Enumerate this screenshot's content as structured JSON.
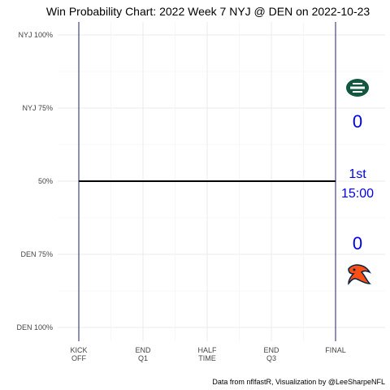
{
  "chart_data": {
    "type": "line",
    "title": "Win Probability Chart: 2022 Week 7 NYJ @ DEN on 2022-10-23",
    "caption": "Data from nflfastR, Visualization by @LeeSharpeNFL",
    "y_ticks": [
      {
        "value": 100,
        "label": "NYJ 100%"
      },
      {
        "value": 75,
        "label": "NYJ 75%"
      },
      {
        "value": 50,
        "label": "50%"
      },
      {
        "value": 25,
        "label": "DEN 75%"
      },
      {
        "value": 0,
        "label": "DEN 100%"
      }
    ],
    "ylim": [
      0,
      100
    ],
    "x_ticks": [
      {
        "value": 0,
        "line1": "KICK",
        "line2": "OFF"
      },
      {
        "value": 900,
        "line1": "END",
        "line2": "Q1"
      },
      {
        "value": 1800,
        "line1": "HALF",
        "line2": "TIME"
      },
      {
        "value": 2700,
        "line1": "END",
        "line2": "Q3"
      },
      {
        "value": 3600,
        "line1": "FINAL",
        "line2": ""
      }
    ],
    "xlim": [
      0,
      3600
    ],
    "series": [
      {
        "values": [
          {
            "x": 0,
            "y": 50
          },
          {
            "x": 3600,
            "y": 50
          }
        ]
      }
    ],
    "grid": true,
    "away_team": "NYJ",
    "home_team": "DEN",
    "away_score": "0",
    "home_score": "0",
    "quarter": "1st",
    "clock": "15:00",
    "colors": {
      "away": "#125740",
      "home": "#fb4f14",
      "home_navy": "#002244",
      "score": "#0000ee",
      "grid": "#ebebeb",
      "bound_line": "#1f1f5c"
    }
  }
}
